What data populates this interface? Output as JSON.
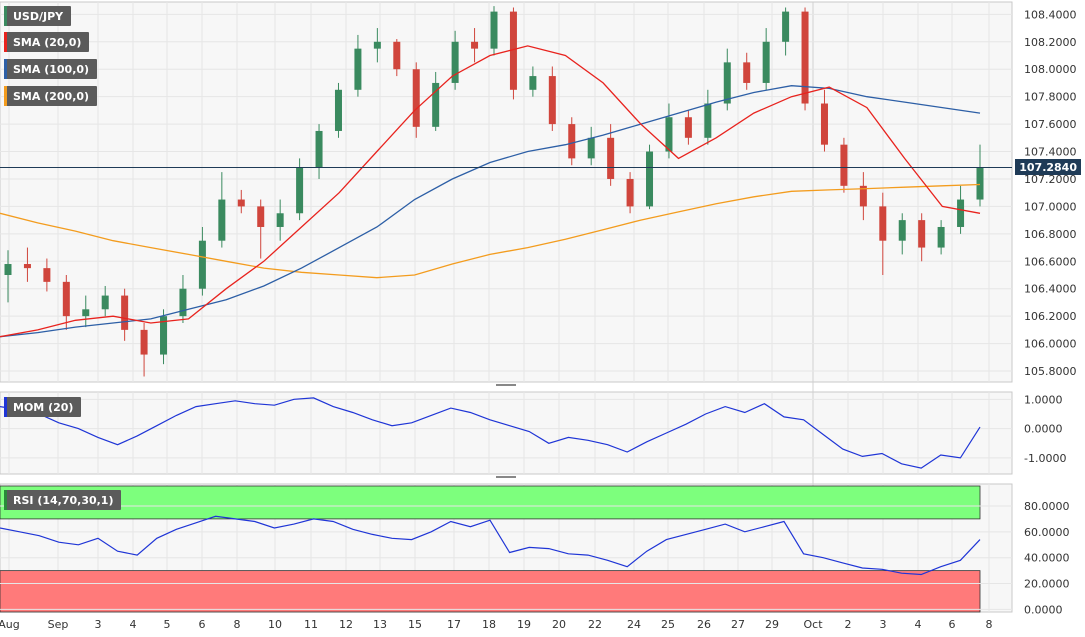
{
  "chart_data": [
    {
      "type": "candlestick",
      "symbol": "USD/JPY",
      "current_price": "107.2840",
      "overlays": [
        {
          "name": "SMA (20,0)",
          "color": "#e8231e"
        },
        {
          "name": "SMA (100,0)",
          "color": "#2d5fa6"
        },
        {
          "name": "SMA (200,0)",
          "color": "#f39c1e"
        }
      ],
      "y_ticks": [
        "108.4000",
        "108.2000",
        "108.0000",
        "107.8000",
        "107.6000",
        "107.4000",
        "107.2000",
        "107.0000",
        "106.8000",
        "106.6000",
        "106.4000",
        "106.2000",
        "106.0000",
        "105.8000"
      ],
      "ylim": [
        105.72,
        108.49
      ],
      "x_ticks": [
        "Aug",
        "Sep",
        "3",
        "4",
        "5",
        "6",
        "8",
        "10",
        "11",
        "12",
        "13",
        "15",
        "17",
        "18",
        "19",
        "20",
        "22",
        "24",
        "25",
        "26",
        "27",
        "29",
        "Oct",
        "2",
        "3",
        "4",
        "6",
        "8"
      ],
      "sma20": [
        106.05,
        106.1,
        106.17,
        106.2,
        106.15,
        106.18,
        106.4,
        106.6,
        106.85,
        107.1,
        107.4,
        107.7,
        107.95,
        108.1,
        108.17,
        108.1,
        107.9,
        107.6,
        107.35,
        107.5,
        107.68,
        107.8,
        107.87,
        107.72,
        107.35,
        107.0,
        106.95
      ],
      "sma100": [
        106.05,
        106.08,
        106.12,
        106.15,
        106.18,
        106.25,
        106.32,
        106.42,
        106.55,
        106.7,
        106.85,
        107.05,
        107.2,
        107.32,
        107.4,
        107.45,
        107.52,
        107.6,
        107.68,
        107.76,
        107.83,
        107.88,
        107.86,
        107.8,
        107.76,
        107.72,
        107.68
      ],
      "sma200": [
        106.95,
        106.88,
        106.82,
        106.75,
        106.7,
        106.65,
        106.6,
        106.55,
        106.52,
        106.5,
        106.48,
        106.5,
        106.58,
        106.65,
        106.7,
        106.76,
        106.83,
        106.9,
        106.96,
        107.02,
        107.07,
        107.11,
        107.12,
        107.13,
        107.14,
        107.15,
        107.16
      ],
      "candles": [
        [
          106.5,
          106.58,
          106.68,
          106.3
        ],
        [
          106.58,
          106.55,
          106.7,
          106.45
        ],
        [
          106.55,
          106.45,
          106.62,
          106.38
        ],
        [
          106.45,
          106.2,
          106.5,
          106.1
        ],
        [
          106.2,
          106.25,
          106.35,
          106.12
        ],
        [
          106.25,
          106.35,
          106.42,
          106.2
        ],
        [
          106.35,
          106.1,
          106.4,
          106.02
        ],
        [
          106.1,
          105.92,
          106.15,
          105.76
        ],
        [
          105.92,
          106.2,
          106.25,
          105.85
        ],
        [
          106.2,
          106.4,
          106.5,
          106.15
        ],
        [
          106.4,
          106.75,
          106.85,
          106.35
        ],
        [
          106.75,
          107.05,
          107.25,
          106.7
        ],
        [
          107.05,
          107.0,
          107.12,
          106.95
        ],
        [
          107.0,
          106.85,
          107.05,
          106.62
        ],
        [
          106.85,
          106.95,
          107.05,
          106.75
        ],
        [
          106.95,
          107.28,
          107.35,
          106.9
        ],
        [
          107.28,
          107.55,
          107.6,
          107.2
        ],
        [
          107.55,
          107.85,
          107.9,
          107.5
        ],
        [
          107.85,
          108.15,
          108.25,
          107.8
        ],
        [
          108.15,
          108.2,
          108.3,
          108.05
        ],
        [
          108.2,
          108.0,
          108.22,
          107.95
        ],
        [
          108.0,
          107.58,
          108.05,
          107.5
        ],
        [
          107.58,
          107.9,
          107.98,
          107.55
        ],
        [
          107.9,
          108.2,
          108.28,
          107.85
        ],
        [
          108.2,
          108.15,
          108.3,
          108.05
        ],
        [
          108.15,
          108.42,
          108.46,
          108.1
        ],
        [
          108.42,
          107.85,
          108.45,
          107.78
        ],
        [
          107.85,
          107.95,
          108.02,
          107.8
        ],
        [
          107.95,
          107.6,
          108.02,
          107.55
        ],
        [
          107.6,
          107.35,
          107.65,
          107.3
        ],
        [
          107.35,
          107.5,
          107.58,
          107.3
        ],
        [
          107.5,
          107.2,
          107.6,
          107.15
        ],
        [
          107.2,
          107.0,
          107.25,
          106.95
        ],
        [
          107.0,
          107.4,
          107.45,
          106.98
        ],
        [
          107.4,
          107.65,
          107.75,
          107.35
        ],
        [
          107.65,
          107.5,
          107.7,
          107.45
        ],
        [
          107.5,
          107.75,
          107.85,
          107.45
        ],
        [
          107.75,
          108.05,
          108.15,
          107.7
        ],
        [
          108.05,
          107.9,
          108.12,
          107.85
        ],
        [
          107.9,
          108.2,
          108.3,
          107.85
        ],
        [
          108.2,
          108.42,
          108.45,
          108.1
        ],
        [
          108.42,
          107.75,
          108.45,
          107.7
        ],
        [
          107.75,
          107.45,
          107.85,
          107.4
        ],
        [
          107.45,
          107.15,
          107.5,
          107.1
        ],
        [
          107.15,
          107.0,
          107.25,
          106.9
        ],
        [
          107.0,
          106.75,
          107.1,
          106.5
        ],
        [
          106.75,
          106.9,
          106.95,
          106.65
        ],
        [
          106.9,
          106.7,
          106.95,
          106.6
        ],
        [
          106.7,
          106.85,
          106.9,
          106.65
        ],
        [
          106.85,
          107.05,
          107.15,
          106.8
        ],
        [
          107.05,
          107.28,
          107.45,
          107.0
        ]
      ]
    },
    {
      "type": "line",
      "name": "MOM (20)",
      "y_ticks": [
        "1.0000",
        "0.0000",
        "-1.0000"
      ],
      "ylim": [
        -1.55,
        1.25
      ],
      "values": [
        0.75,
        0.65,
        0.5,
        0.2,
        0.0,
        -0.3,
        -0.55,
        -0.25,
        0.1,
        0.45,
        0.75,
        0.85,
        0.95,
        0.85,
        0.8,
        1.0,
        1.05,
        0.75,
        0.55,
        0.3,
        0.1,
        0.2,
        0.45,
        0.7,
        0.55,
        0.3,
        0.1,
        -0.1,
        -0.5,
        -0.3,
        -0.4,
        -0.55,
        -0.8,
        -0.45,
        -0.15,
        0.15,
        0.5,
        0.75,
        0.55,
        0.85,
        0.4,
        0.3,
        -0.2,
        -0.7,
        -0.95,
        -0.85,
        -1.2,
        -1.35,
        -0.9,
        -1.0,
        0.05
      ]
    },
    {
      "type": "line",
      "name": "RSI (14,70,30,1)",
      "y_ticks": [
        "80.0000",
        "60.0000",
        "40.0000",
        "20.0000",
        "0.0000"
      ],
      "ylim": [
        -2,
        97
      ],
      "overbought": 70,
      "oversold": 30,
      "values": [
        63,
        60,
        57,
        52,
        50,
        55,
        45,
        42,
        55,
        62,
        67,
        72,
        70,
        68,
        63,
        66,
        70,
        68,
        62,
        58,
        55,
        54,
        60,
        68,
        64,
        69,
        44,
        48,
        47,
        43,
        42,
        38,
        33,
        45,
        54,
        58,
        62,
        66,
        60,
        64,
        68,
        43,
        40,
        36,
        32,
        31,
        28,
        27,
        33,
        38,
        54
      ]
    }
  ]
}
